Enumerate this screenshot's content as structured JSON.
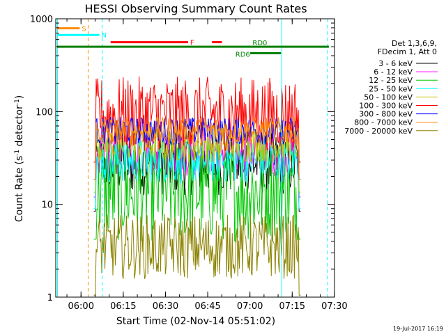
{
  "chart_data": {
    "type": "line",
    "title": "HESSI Observing Summary Count Rates",
    "xlabel": "Start Time (02-Nov-14 05:51:02)",
    "ylabel_main": "Count Rate (s",
    "ylabel_sup1": "-1",
    "ylabel_mid": " detector",
    "ylabel_sup2": "-1",
    "ylabel_end": ")",
    "yscale": "log",
    "ylim": [
      1,
      1000
    ],
    "xlim_minutes": [
      0,
      99
    ],
    "x_ticks": [
      {
        "label": "06:00",
        "minute": 8.97
      },
      {
        "label": "06:15",
        "minute": 23.97
      },
      {
        "label": "06:30",
        "minute": 38.97
      },
      {
        "label": "06:45",
        "minute": 53.97
      },
      {
        "label": "07:00",
        "minute": 68.97
      },
      {
        "label": "07:15",
        "minute": 83.97
      },
      {
        "label": "07:30",
        "minute": 98.97
      }
    ],
    "y_ticks": [
      {
        "label": "1",
        "value": 1
      },
      {
        "label": "10",
        "value": 10
      },
      {
        "label": "100",
        "value": 100
      },
      {
        "label": "1000",
        "value": 1000
      }
    ],
    "legend_header": [
      "Det 1,3,6,9,",
      "FDecim 1, Att 0"
    ],
    "legend_position": "right",
    "series": [
      {
        "name": "3 - 6 keV",
        "color": "#000000",
        "level": 28,
        "spread": 0.35
      },
      {
        "name": "6 - 12 keV",
        "color": "#ff00ff",
        "level": 40,
        "spread": 0.3
      },
      {
        "name": "12 - 25 keV",
        "color": "#00c800",
        "level": 14,
        "spread": 0.55
      },
      {
        "name": "25 - 50 keV",
        "color": "#00ffff",
        "level": 30,
        "spread": 0.25
      },
      {
        "name": "50 - 100 keV",
        "color": "#c8c800",
        "level": 45,
        "spread": 0.2
      },
      {
        "name": "100 - 300 keV",
        "color": "#ff0000",
        "level": 95,
        "spread": 0.4
      },
      {
        "name": "300 - 800 keV",
        "color": "#0000ff",
        "level": 62,
        "spread": 0.15
      },
      {
        "name": "800 - 7000 keV",
        "color": "#ff8c00",
        "level": 62,
        "spread": 0.15
      },
      {
        "name": "7000 - 20000 keV",
        "color": "#8c8200",
        "level": 3.5,
        "spread": 0.35
      }
    ],
    "flags": [
      {
        "label": "S",
        "color": "#ff8c00",
        "start": 0.5,
        "end": 8.5,
        "value": 790
      },
      {
        "label": "N",
        "color": "#00ffff",
        "start": 0.5,
        "end": 15.5,
        "value": 670
      },
      {
        "label": "F",
        "color": "#ff0000",
        "start": 19.5,
        "end": 47.0,
        "value": 560
      },
      {
        "label": "",
        "color": "#ff0000",
        "start": 55.5,
        "end": 59.0,
        "value": 560
      },
      {
        "label": "RD0",
        "color": "#008000",
        "start": 0.5,
        "end": 97.0,
        "value": 500
      },
      {
        "label": "RD6",
        "color": "#008000",
        "start": 69.0,
        "end": 80.0,
        "value": 425
      }
    ],
    "vertical_markers": [
      {
        "minute": 0.6,
        "color": "#00ffff",
        "style": "solid"
      },
      {
        "minute": 11.5,
        "color": "#ff8c00",
        "style": "dashed"
      },
      {
        "minute": 16.5,
        "color": "#00ffff",
        "style": "dashed"
      },
      {
        "minute": 80.3,
        "color": "#00ffff",
        "style": "solid"
      },
      {
        "minute": 96.5,
        "color": "#00ffff",
        "style": "dashed"
      }
    ],
    "data_interval_minutes": [
      13.5,
      87.0
    ],
    "grid": false
  },
  "footer": {
    "date_stamp": "19-Jul-2017 16:19"
  }
}
